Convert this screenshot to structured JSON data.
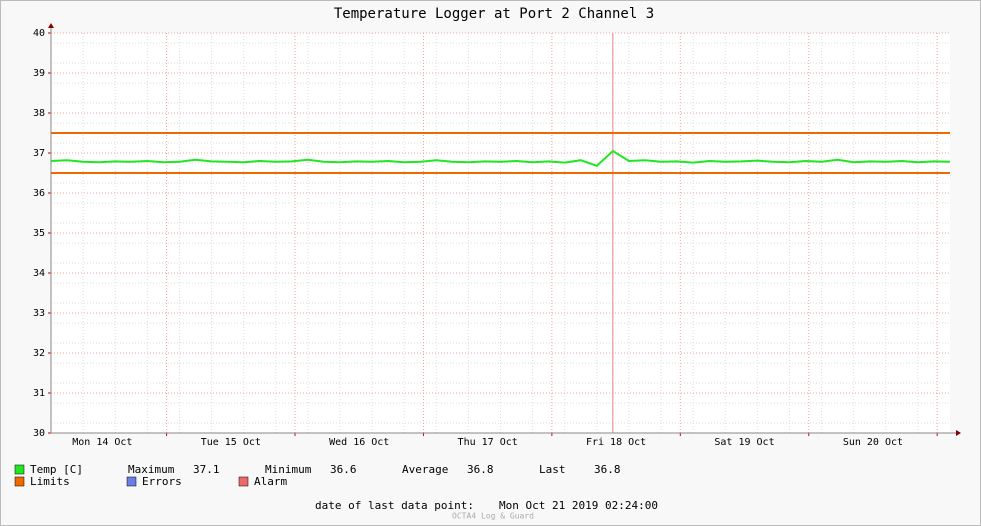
{
  "chart_data": {
    "type": "line",
    "title": "Temperature Logger at Port 2 Channel 3",
    "ylim": [
      30,
      40
    ],
    "yticks": [
      30,
      31,
      32,
      33,
      34,
      35,
      36,
      37,
      38,
      39,
      40
    ],
    "xlim": [
      2.4,
      170.4
    ],
    "xticks": [
      {
        "value": 12,
        "label": "Mon 14 Oct"
      },
      {
        "value": 36,
        "label": "Tue 15 Oct"
      },
      {
        "value": 60,
        "label": "Wed 16 Oct"
      },
      {
        "value": 84,
        "label": "Thu 17 Oct"
      },
      {
        "value": 108,
        "label": "Fri 18 Oct"
      },
      {
        "value": 132,
        "label": "Sat 19 Oct"
      },
      {
        "value": 156,
        "label": "Sun 20 Oct"
      }
    ],
    "xgrid": [
      24,
      48,
      72,
      96,
      120,
      144,
      168
    ],
    "grid": true,
    "event_x": 107.4,
    "x": [
      2.4,
      5.4,
      8.4,
      11.4,
      14.4,
      17.4,
      20.4,
      23.4,
      26.4,
      29.4,
      32.4,
      35.4,
      38.4,
      41.4,
      44.4,
      47.4,
      50.4,
      53.4,
      56.4,
      59.4,
      62.4,
      65.4,
      68.4,
      71.4,
      74.4,
      77.4,
      80.4,
      83.4,
      86.4,
      89.4,
      92.4,
      95.4,
      98.4,
      101.4,
      104.4,
      107.4,
      110.4,
      113.4,
      116.4,
      119.4,
      122.4,
      125.4,
      128.4,
      131.4,
      134.4,
      137.4,
      140.4,
      143.4,
      146.4,
      149.4,
      152.4,
      155.4,
      158.4,
      161.4,
      164.4,
      167.4,
      170.4
    ],
    "series": [
      {
        "name": "Temp [C]",
        "color": "#22e622",
        "values": [
          36.8,
          36.82,
          36.78,
          36.77,
          36.79,
          36.78,
          36.8,
          36.77,
          36.78,
          36.83,
          36.79,
          36.78,
          36.77,
          36.8,
          36.78,
          36.79,
          36.83,
          36.78,
          36.77,
          36.79,
          36.78,
          36.8,
          36.77,
          36.78,
          36.82,
          36.78,
          36.77,
          36.79,
          36.78,
          36.8,
          36.77,
          36.79,
          36.76,
          36.82,
          36.68,
          37.05,
          36.8,
          36.82,
          36.78,
          36.79,
          36.76,
          36.8,
          36.78,
          36.79,
          36.81,
          36.78,
          36.77,
          36.8,
          36.78,
          36.83,
          36.77,
          36.79,
          36.78,
          36.8,
          36.77,
          36.79,
          36.78
        ]
      }
    ],
    "limits": {
      "name": "Limits",
      "color": "#ee6a00",
      "values": [
        37.5,
        36.5
      ]
    },
    "legend_extra": [
      {
        "name": "Errors",
        "color": "#6a7fe6"
      },
      {
        "name": "Alarm",
        "color": "#ee6a6a"
      }
    ],
    "stats": [
      {
        "label": "Maximum",
        "value": 37.1
      },
      {
        "label": "Minimum",
        "value": 36.6
      },
      {
        "label": "Average",
        "value": 36.8
      },
      {
        "label": "Last",
        "value": 36.8
      }
    ],
    "footer_label": "date of last data point:",
    "footer_value": "Mon Oct 21 2019 02:24:00",
    "watermark": "OCTA4 Log & Guard"
  }
}
